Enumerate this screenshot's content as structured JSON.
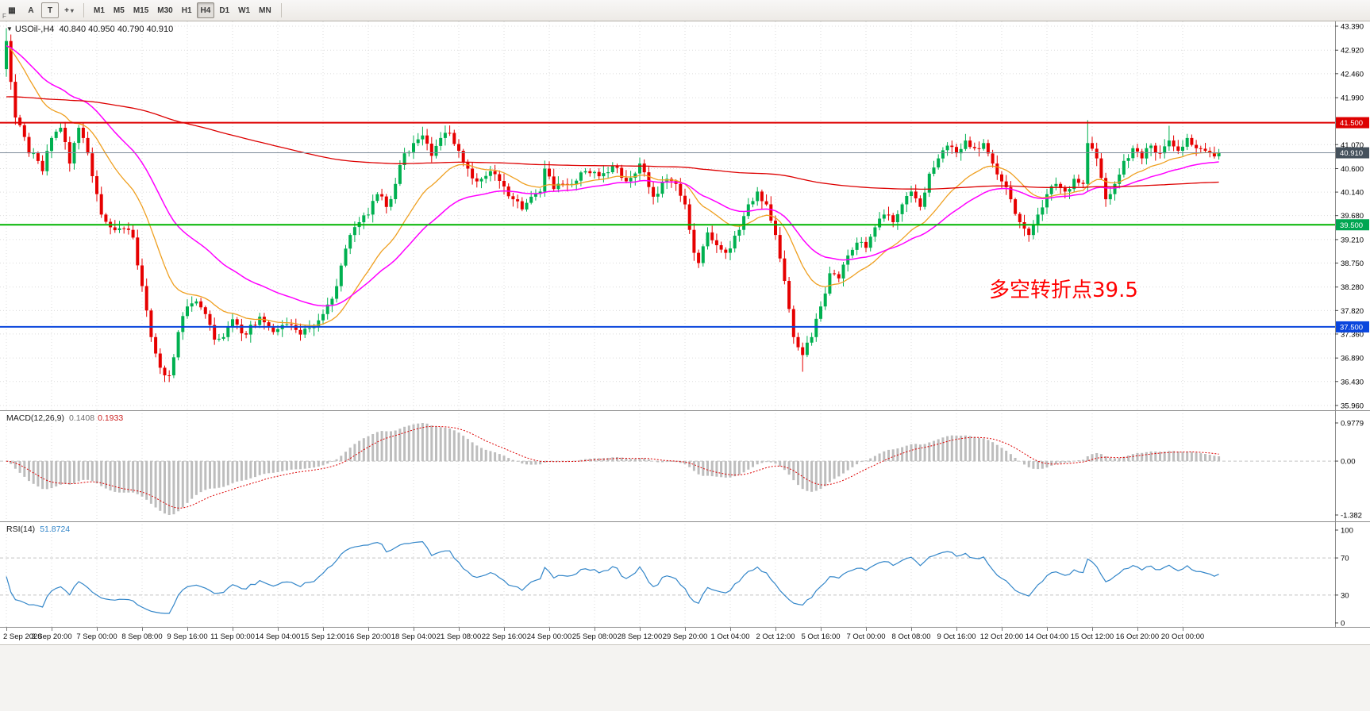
{
  "toolbar": {
    "f_marker": "F",
    "tools": [
      {
        "name": "charts-grid-icon",
        "glyph": "▦"
      },
      {
        "name": "label-tool",
        "label": "A"
      },
      {
        "name": "text-tool",
        "label": "T"
      },
      {
        "name": "crosshair-tool",
        "glyph": "+",
        "caret": "▾"
      }
    ],
    "timeframes": [
      "M1",
      "M5",
      "M15",
      "M30",
      "H1",
      "H4",
      "D1",
      "W1",
      "MN"
    ],
    "active_timeframe": "H4"
  },
  "chart": {
    "direction_marker": "▼",
    "title": "USOil-,H4",
    "ohlc_text": "40.840 40.950 40.790 40.910",
    "annotation": "多空转折点39.5",
    "price_ticks": [
      "43.390",
      "42.920",
      "42.460",
      "41.990",
      "41.070",
      "40.600",
      "40.140",
      "39.680",
      "39.210",
      "38.750",
      "38.280",
      "37.820",
      "37.360",
      "36.890",
      "36.430",
      "35.960"
    ],
    "price_badges": [
      {
        "value": "41.500",
        "price": 41.5,
        "color": "#dd0000"
      },
      {
        "value": "40.910",
        "price": 40.91,
        "color": "#45515c"
      },
      {
        "value": "39.500",
        "price": 39.5,
        "color": "#00a651"
      },
      {
        "value": "37.500",
        "price": 37.5,
        "color": "#0a46dd"
      }
    ]
  },
  "macd_panel": {
    "label": "MACD(12,26,9)",
    "value_main": "0.1408",
    "value_signal": "0.1933",
    "axis_ticks": [
      "0.9779",
      "0.00",
      "-1.382"
    ]
  },
  "rsi_panel": {
    "label": "RSI(14)",
    "value": "51.8724",
    "axis_ticks": [
      "100",
      "70",
      "30",
      "0"
    ],
    "levels": [
      70,
      30
    ]
  },
  "time_axis": [
    "2 Sep 2020",
    "3 Sep 20:00",
    "7 Sep 00:00",
    "8 Sep 08:00",
    "9 Sep 16:00",
    "11 Sep 00:00",
    "14 Sep 04:00",
    "15 Sep 12:00",
    "16 Sep 20:00",
    "18 Sep 04:00",
    "21 Sep 08:00",
    "22 Sep 16:00",
    "24 Sep 00:00",
    "25 Sep 08:00",
    "28 Sep 12:00",
    "29 Sep 20:00",
    "1 Oct 04:00",
    "2 Oct 12:00",
    "5 Oct 16:00",
    "7 Oct 00:00",
    "8 Oct 08:00",
    "9 Oct 16:00",
    "12 Oct 20:00",
    "14 Oct 04:00",
    "15 Oct 12:00",
    "16 Oct 20:00",
    "20 Oct 00:00"
  ],
  "chart_data": {
    "type": "candlestick",
    "symbol": "USOil-",
    "timeframe": "H4",
    "current_ohlc": {
      "open": 40.84,
      "high": 40.95,
      "low": 40.79,
      "close": 40.91
    },
    "bar_count": 269,
    "bars_per_gridline": 10,
    "ylim": [
      35.96,
      43.39
    ],
    "price_anchors": [
      [
        0,
        43.1
      ],
      [
        1,
        42.3
      ],
      [
        2,
        41.6
      ],
      [
        3,
        41.45
      ],
      [
        5,
        40.9
      ],
      [
        7,
        40.75
      ],
      [
        8,
        40.55
      ],
      [
        10,
        41.2
      ],
      [
        12,
        41.4
      ],
      [
        14,
        40.7
      ],
      [
        16,
        41.4
      ],
      [
        17,
        41.2
      ],
      [
        18,
        40.9
      ],
      [
        20,
        40.1
      ],
      [
        21,
        39.7
      ],
      [
        23,
        39.45
      ],
      [
        27,
        39.4
      ],
      [
        28,
        39.25
      ],
      [
        30,
        38.3
      ],
      [
        32,
        37.3
      ],
      [
        34,
        36.7
      ],
      [
        36,
        36.55
      ],
      [
        38,
        37.4
      ],
      [
        40,
        37.9
      ],
      [
        42,
        38.0
      ],
      [
        44,
        37.75
      ],
      [
        46,
        37.25
      ],
      [
        48,
        37.3
      ],
      [
        50,
        37.65
      ],
      [
        53,
        37.35
      ],
      [
        56,
        37.7
      ],
      [
        59,
        37.4
      ],
      [
        62,
        37.55
      ],
      [
        65,
        37.35
      ],
      [
        68,
        37.5
      ],
      [
        70,
        37.75
      ],
      [
        72,
        38.05
      ],
      [
        74,
        38.7
      ],
      [
        76,
        39.3
      ],
      [
        78,
        39.55
      ],
      [
        80,
        39.7
      ],
      [
        82,
        40.1
      ],
      [
        84,
        39.85
      ],
      [
        86,
        40.3
      ],
      [
        88,
        40.9
      ],
      [
        90,
        41.1
      ],
      [
        92,
        41.25
      ],
      [
        94,
        40.85
      ],
      [
        96,
        41.2
      ],
      [
        98,
        41.3
      ],
      [
        100,
        40.95
      ],
      [
        102,
        40.6
      ],
      [
        104,
        40.35
      ],
      [
        107,
        40.55
      ],
      [
        110,
        40.25
      ],
      [
        112,
        40.0
      ],
      [
        114,
        39.8
      ],
      [
        116,
        40.05
      ],
      [
        118,
        40.15
      ],
      [
        119,
        40.6
      ],
      [
        121,
        40.2
      ],
      [
        123,
        40.3
      ],
      [
        125,
        40.3
      ],
      [
        128,
        40.55
      ],
      [
        131,
        40.45
      ],
      [
        134,
        40.65
      ],
      [
        137,
        40.35
      ],
      [
        140,
        40.7
      ],
      [
        143,
        40.05
      ],
      [
        146,
        40.4
      ],
      [
        148,
        40.3
      ],
      [
        150,
        39.9
      ],
      [
        152,
        38.95
      ],
      [
        153,
        38.75
      ],
      [
        155,
        39.35
      ],
      [
        157,
        39.1
      ],
      [
        159,
        38.95
      ],
      [
        162,
        39.4
      ],
      [
        164,
        39.9
      ],
      [
        166,
        40.15
      ],
      [
        168,
        39.9
      ],
      [
        170,
        39.3
      ],
      [
        172,
        38.4
      ],
      [
        174,
        37.3
      ],
      [
        176,
        36.95
      ],
      [
        178,
        37.3
      ],
      [
        180,
        37.9
      ],
      [
        182,
        38.55
      ],
      [
        184,
        38.45
      ],
      [
        186,
        38.9
      ],
      [
        188,
        39.15
      ],
      [
        190,
        39.05
      ],
      [
        192,
        39.45
      ],
      [
        194,
        39.7
      ],
      [
        196,
        39.55
      ],
      [
        198,
        39.9
      ],
      [
        200,
        40.15
      ],
      [
        202,
        39.85
      ],
      [
        204,
        40.5
      ],
      [
        206,
        40.8
      ],
      [
        208,
        41.05
      ],
      [
        210,
        40.9
      ],
      [
        212,
        41.15
      ],
      [
        214,
        41.0
      ],
      [
        216,
        41.1
      ],
      [
        218,
        40.7
      ],
      [
        220,
        40.35
      ],
      [
        222,
        40.0
      ],
      [
        224,
        39.55
      ],
      [
        226,
        39.3
      ],
      [
        228,
        39.7
      ],
      [
        230,
        40.1
      ],
      [
        232,
        40.3
      ],
      [
        234,
        40.15
      ],
      [
        236,
        40.4
      ],
      [
        238,
        40.3
      ],
      [
        239,
        41.1
      ],
      [
        241,
        40.8
      ],
      [
        243,
        40.0
      ],
      [
        245,
        40.3
      ],
      [
        247,
        40.75
      ],
      [
        249,
        41.0
      ],
      [
        251,
        40.8
      ],
      [
        253,
        41.05
      ],
      [
        255,
        40.9
      ],
      [
        257,
        41.15
      ],
      [
        259,
        40.95
      ],
      [
        261,
        41.2
      ],
      [
        263,
        41.0
      ],
      [
        265,
        40.95
      ],
      [
        267,
        40.84
      ],
      [
        268,
        40.91
      ]
    ],
    "wick_spikes": [
      {
        "bar": 0,
        "high": 43.35
      },
      {
        "bar": 35,
        "low": 36.42
      },
      {
        "bar": 92,
        "high": 41.42
      },
      {
        "bar": 176,
        "low": 36.62
      },
      {
        "bar": 239,
        "high": 41.55
      },
      {
        "bar": 257,
        "high": 41.44
      }
    ],
    "horizontal_lines": [
      {
        "price": 41.5,
        "color": "#dd0000",
        "label": "41.500"
      },
      {
        "price": 39.5,
        "color": "#00b400",
        "label": "39.500"
      },
      {
        "price": 37.5,
        "color": "#0a46dd",
        "label": "37.500"
      }
    ],
    "current_price": 40.91,
    "moving_averages": [
      {
        "name": "fast-orange",
        "color": "#efa021",
        "alpha": 0.1,
        "seed": 43.0,
        "width": 1.3
      },
      {
        "name": "medium-magenta",
        "color": "#ff00ff",
        "alpha": 0.05,
        "seed": 43.0,
        "width": 1.5
      },
      {
        "name": "slow-red",
        "color": "#dd0000",
        "alpha": 0.006,
        "seed": 42.0,
        "width": 1.3
      }
    ],
    "indicators": [
      {
        "type": "MACD",
        "fast": 12,
        "slow": 26,
        "signal": 9,
        "last_main": 0.1408,
        "last_signal": 0.1933,
        "scale_max": 0.9779,
        "scale_min": -1.382
      },
      {
        "type": "RSI",
        "period": 14,
        "last": 51.8724,
        "levels": [
          70,
          30
        ]
      }
    ],
    "bull_color": "#00b050",
    "bear_color": "#e60000"
  },
  "colors": {
    "background": "#ffffff",
    "grid": "#dcdcdc",
    "axis_line": "#8c8c8c",
    "axis_text": "#000000",
    "current_price_line": "#7d8b99",
    "annotation": "#ff0000",
    "macd_hist": "#bdbdbd",
    "macd_signal": "#dd0000",
    "rsi_line": "#3386c9",
    "level_dash": "#c4c4c4"
  }
}
